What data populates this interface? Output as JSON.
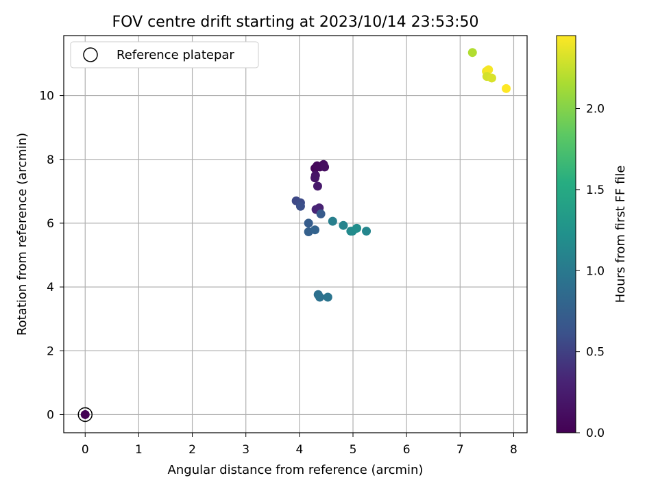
{
  "chart_data": {
    "type": "scatter",
    "title": "FOV centre drift starting at 2023/10/14 23:53:50",
    "xlabel": "Angular distance from reference (arcmin)",
    "ylabel": "Rotation from reference (arcmin)",
    "xlim": [
      -0.4,
      8.25
    ],
    "ylim": [
      -0.57,
      11.88
    ],
    "xticks": [
      0,
      1,
      2,
      3,
      4,
      5,
      6,
      7,
      8
    ],
    "yticks": [
      0,
      2,
      4,
      6,
      8,
      10
    ],
    "grid": true,
    "legend": {
      "placement": "top-left",
      "entries": [
        "Reference platepar"
      ]
    },
    "colorbar": {
      "label": "Hours from first FF file",
      "range": [
        0.0,
        2.45
      ],
      "ticks": [
        "0.0",
        "0.5",
        "1.0",
        "1.5",
        "2.0"
      ],
      "colormap": "viridis"
    },
    "reference_point": {
      "name": "Reference platepar",
      "x": 0,
      "y": 0
    },
    "series": [
      {
        "points": [
          {
            "x": 0.0,
            "y": 0.0,
            "c": 0.0
          },
          {
            "x": 4.29,
            "y": 7.72,
            "c": 0.05
          },
          {
            "x": 4.33,
            "y": 7.8,
            "c": 0.07
          },
          {
            "x": 4.38,
            "y": 7.76,
            "c": 0.08
          },
          {
            "x": 4.45,
            "y": 7.84,
            "c": 0.1
          },
          {
            "x": 4.47,
            "y": 7.76,
            "c": 0.12
          },
          {
            "x": 4.3,
            "y": 7.5,
            "c": 0.15
          },
          {
            "x": 4.29,
            "y": 7.42,
            "c": 0.17
          },
          {
            "x": 4.34,
            "y": 7.16,
            "c": 0.22
          },
          {
            "x": 4.37,
            "y": 6.48,
            "c": 0.3
          },
          {
            "x": 4.31,
            "y": 6.43,
            "c": 0.32
          },
          {
            "x": 3.94,
            "y": 6.7,
            "c": 0.55
          },
          {
            "x": 4.02,
            "y": 6.64,
            "c": 0.57
          },
          {
            "x": 4.02,
            "y": 6.53,
            "c": 0.6
          },
          {
            "x": 4.4,
            "y": 6.29,
            "c": 0.7
          },
          {
            "x": 4.17,
            "y": 6.0,
            "c": 0.72
          },
          {
            "x": 4.17,
            "y": 5.73,
            "c": 0.75
          },
          {
            "x": 4.29,
            "y": 5.79,
            "c": 0.78
          },
          {
            "x": 4.35,
            "y": 3.76,
            "c": 0.9
          },
          {
            "x": 4.38,
            "y": 3.68,
            "c": 0.92
          },
          {
            "x": 4.53,
            "y": 3.68,
            "c": 0.95
          },
          {
            "x": 4.62,
            "y": 6.06,
            "c": 1.05
          },
          {
            "x": 4.82,
            "y": 5.93,
            "c": 1.1
          },
          {
            "x": 4.96,
            "y": 5.75,
            "c": 1.15
          },
          {
            "x": 4.99,
            "y": 5.75,
            "c": 1.17
          },
          {
            "x": 5.07,
            "y": 5.84,
            "c": 1.2
          },
          {
            "x": 5.25,
            "y": 5.75,
            "c": 1.12
          },
          {
            "x": 7.23,
            "y": 11.35,
            "c": 2.18
          },
          {
            "x": 7.49,
            "y": 10.76,
            "c": 2.4
          },
          {
            "x": 7.53,
            "y": 10.81,
            "c": 2.42
          },
          {
            "x": 7.5,
            "y": 10.6,
            "c": 2.3
          },
          {
            "x": 7.59,
            "y": 10.55,
            "c": 2.32
          },
          {
            "x": 7.86,
            "y": 10.22,
            "c": 2.45
          }
        ]
      }
    ]
  }
}
